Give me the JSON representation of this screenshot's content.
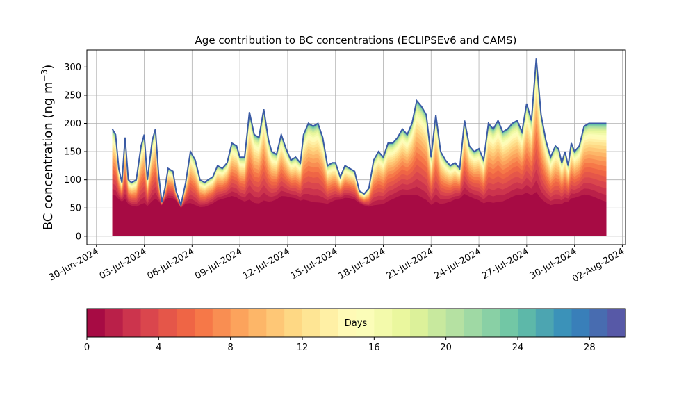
{
  "chart_data": {
    "type": "area",
    "title": "Age contribution to BC concentrations (ECLIPSEv6 and CAMS)",
    "ylabel_main": "BC concentration (ng m",
    "ylabel_sup": "−3",
    "ylabel_close": ")",
    "xlabel": "",
    "ylim": [
      -15,
      330
    ],
    "yticks": [
      0,
      50,
      100,
      150,
      200,
      250,
      300
    ],
    "xlim_days": [
      -0.6,
      33.2
    ],
    "xticks": [
      {
        "day": 0,
        "label": "30-Jun-2024"
      },
      {
        "day": 3,
        "label": "03-Jul-2024"
      },
      {
        "day": 6,
        "label": "06-Jul-2024"
      },
      {
        "day": 9,
        "label": "09-Jul-2024"
      },
      {
        "day": 12,
        "label": "12-Jul-2024"
      },
      {
        "day": 15,
        "label": "15-Jul-2024"
      },
      {
        "day": 18,
        "label": "18-Jul-2024"
      },
      {
        "day": 21,
        "label": "21-Jul-2024"
      },
      {
        "day": 24,
        "label": "24-Jul-2024"
      },
      {
        "day": 27,
        "label": "27-Jul-2024"
      },
      {
        "day": 30,
        "label": "30-Jul-2024"
      },
      {
        "day": 33,
        "label": "02-Aug-2024"
      }
    ],
    "grid": true,
    "colormap": "Spectral",
    "total": {
      "x": [
        1.0,
        1.2,
        1.4,
        1.6,
        1.8,
        2.0,
        2.2,
        2.5,
        2.8,
        3.0,
        3.2,
        3.5,
        3.7,
        3.9,
        4.1,
        4.3,
        4.5,
        4.8,
        5.0,
        5.3,
        5.6,
        5.9,
        6.2,
        6.5,
        6.8,
        7.0,
        7.3,
        7.6,
        7.9,
        8.2,
        8.5,
        8.8,
        9.0,
        9.3,
        9.6,
        9.9,
        10.2,
        10.5,
        10.8,
        11.0,
        11.3,
        11.6,
        11.9,
        12.2,
        12.5,
        12.8,
        13.0,
        13.3,
        13.6,
        13.9,
        14.2,
        14.5,
        14.8,
        15.0,
        15.3,
        15.6,
        15.9,
        16.2,
        16.5,
        16.8,
        17.1,
        17.4,
        17.7,
        18.0,
        18.3,
        18.6,
        18.9,
        19.2,
        19.5,
        19.8,
        20.1,
        20.4,
        20.7,
        21.0,
        21.3,
        21.6,
        21.9,
        22.2,
        22.5,
        22.8,
        23.1,
        23.4,
        23.7,
        24.0,
        24.3,
        24.6,
        24.9,
        25.2,
        25.5,
        25.8,
        26.1,
        26.4,
        26.7,
        27.0,
        27.3,
        27.6,
        27.9,
        28.2,
        28.5,
        28.8,
        29.0,
        29.2,
        29.4,
        29.6,
        29.8,
        30.0,
        30.3,
        30.6,
        30.9,
        31.2,
        31.5,
        31.8,
        32.0
      ],
      "y": [
        190,
        180,
        120,
        95,
        175,
        100,
        95,
        100,
        160,
        180,
        100,
        170,
        190,
        110,
        60,
        85,
        120,
        115,
        80,
        55,
        95,
        150,
        135,
        100,
        95,
        100,
        105,
        125,
        120,
        130,
        165,
        160,
        140,
        140,
        220,
        180,
        175,
        225,
        170,
        150,
        145,
        180,
        155,
        135,
        140,
        130,
        180,
        200,
        195,
        200,
        175,
        125,
        130,
        130,
        105,
        125,
        120,
        115,
        80,
        75,
        85,
        135,
        150,
        140,
        165,
        165,
        175,
        190,
        180,
        200,
        240,
        230,
        215,
        140,
        215,
        150,
        135,
        125,
        130,
        120,
        205,
        160,
        150,
        155,
        135,
        200,
        190,
        205,
        185,
        190,
        200,
        205,
        185,
        235,
        205,
        315,
        215,
        170,
        140,
        160,
        155,
        130,
        150,
        125,
        165,
        150,
        160,
        195,
        200,
        200,
        200,
        200,
        200
      ],
      "days": 30
    }
  },
  "colorbar": {
    "label": "Days",
    "ticks": [
      0,
      4,
      8,
      12,
      16,
      20,
      24,
      28
    ],
    "range": [
      0,
      30
    ]
  }
}
